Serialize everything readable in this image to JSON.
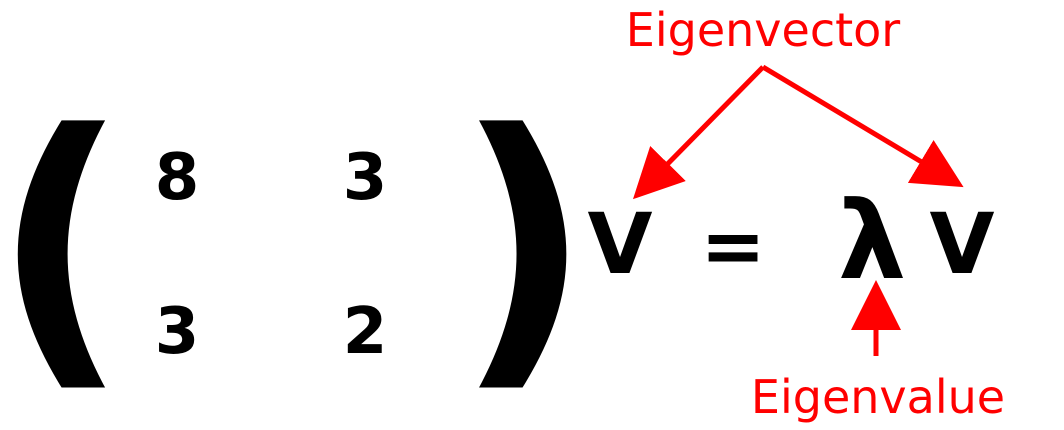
{
  "matrix": {
    "rows": [
      [
        "8",
        "3"
      ],
      [
        "3",
        "2"
      ]
    ]
  },
  "equation": {
    "vector_left": "V",
    "equals": "=",
    "lambda": "λ",
    "vector_right": "V"
  },
  "annotations": {
    "eigenvector_label": "Eigenvector",
    "eigenvalue_label": "Eigenvalue",
    "color": "#ff0000"
  }
}
